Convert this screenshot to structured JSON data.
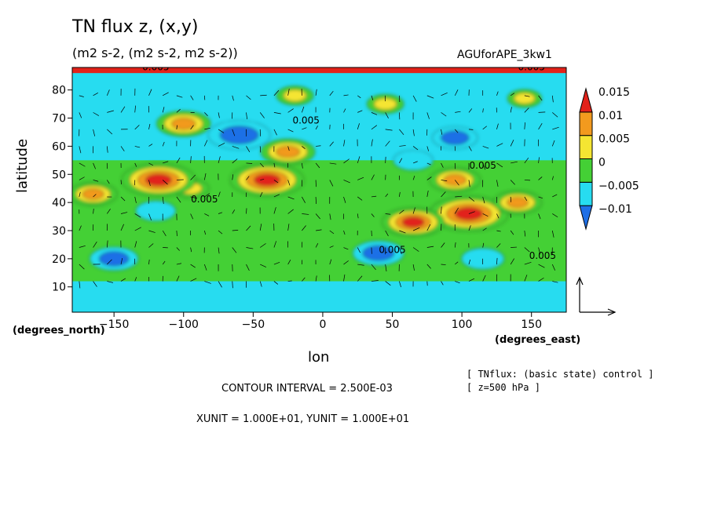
{
  "chart_data": {
    "type": "heatmap",
    "title": "TN flux z, (x,y)",
    "subtitle": "(m2 s-2, (m2 s-2, m2 s-2))",
    "run_name": "AGUforAPE_3kw1",
    "xlabel": "lon",
    "ylabel": "latitude",
    "x_unit_label": "(degrees_east)",
    "y_unit_label": "(degrees_north)",
    "xlim": [
      -180,
      175
    ],
    "ylim": [
      1,
      88
    ],
    "x_ticks": [
      -150,
      -100,
      -50,
      0,
      50,
      100,
      150
    ],
    "x_tick_labels": [
      "−150",
      "−100",
      "−50",
      "0",
      "50",
      "100",
      "150"
    ],
    "y_ticks": [
      10,
      20,
      30,
      40,
      50,
      60,
      70,
      80
    ],
    "y_tick_labels": [
      "10",
      "20",
      "30",
      "40",
      "50",
      "60",
      "70",
      "80"
    ],
    "colorbar": {
      "levels": [
        -0.01,
        -0.005,
        0,
        0.005,
        0.01,
        0.015
      ],
      "labels": [
        "−0.01",
        "−0.005",
        "0",
        "0.005",
        "0.01",
        "0.015"
      ],
      "colors": [
        "#1f6fe6",
        "#27dcf0",
        "#44d035",
        "#f5e532",
        "#f29a1e",
        "#e2221a"
      ]
    },
    "contour_labels": [
      {
        "text": "0.005",
        "lon": -120,
        "lat": 87
      },
      {
        "text": "0.005",
        "lon": 150,
        "lat": 87
      },
      {
        "text": "0.005",
        "lon": -12,
        "lat": 68
      },
      {
        "text": "0.005",
        "lon": -85,
        "lat": 40
      },
      {
        "text": "0.005",
        "lon": 50,
        "lat": 22
      },
      {
        "text": "0.005",
        "lon": 158,
        "lat": 20
      },
      {
        "text": "0.005",
        "lon": 115,
        "lat": 52
      }
    ],
    "fields": [
      {
        "lon": -95,
        "lat": 45,
        "value": 0.003
      },
      {
        "lon": -118,
        "lat": 48,
        "value": 0.016
      },
      {
        "lon": -40,
        "lat": 48,
        "value": 0.016
      },
      {
        "lon": -100,
        "lat": 68,
        "value": 0.009
      },
      {
        "lon": -60,
        "lat": 64,
        "value": -0.012
      },
      {
        "lon": -25,
        "lat": 58,
        "value": 0.009
      },
      {
        "lon": 105,
        "lat": 36,
        "value": 0.018
      },
      {
        "lon": 140,
        "lat": 40,
        "value": 0.007
      },
      {
        "lon": 65,
        "lat": 33,
        "value": 0.012
      },
      {
        "lon": 95,
        "lat": 48,
        "value": 0.008
      },
      {
        "lon": -165,
        "lat": 43,
        "value": 0.007
      },
      {
        "lon": -120,
        "lat": 37,
        "value": -0.004
      },
      {
        "lon": -150,
        "lat": 20,
        "value": -0.007
      },
      {
        "lon": 40,
        "lat": 22,
        "value": -0.008
      },
      {
        "lon": 115,
        "lat": 20,
        "value": -0.005
      },
      {
        "lon": 65,
        "lat": 55,
        "value": -0.004
      },
      {
        "lon": 95,
        "lat": 63,
        "value": -0.006
      },
      {
        "lon": 45,
        "lat": 75,
        "value": 0.003
      },
      {
        "lon": 145,
        "lat": 77,
        "value": 0.002
      },
      {
        "lon": -20,
        "lat": 78,
        "value": 0.003
      }
    ]
  },
  "footer": {
    "contour_interval": "CONTOUR INTERVAL = 2.500E-03",
    "units": "XUNIT = 1.000E+01, YUNIT = 1.000E+01",
    "note1": "[ TNflux: (basic state) control ]",
    "note2": "[ z=500 hPa ]"
  }
}
